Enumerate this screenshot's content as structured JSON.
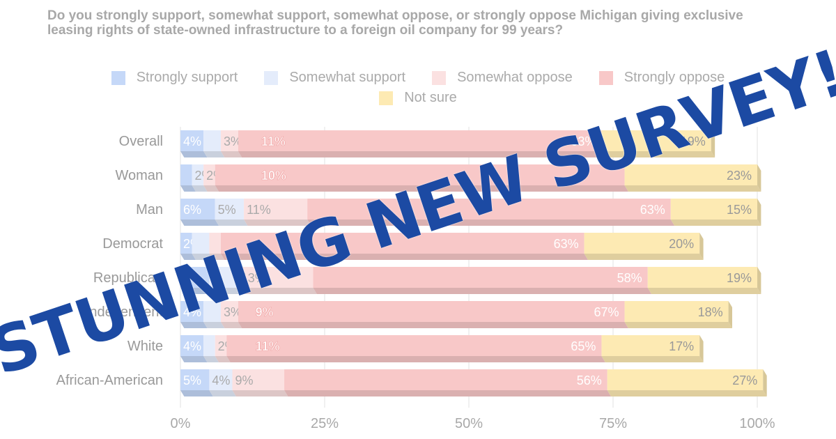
{
  "question": "Do you strongly support, somewhat support, somewhat oppose, or strongly oppose Michigan giving exclusive leasing rights of state-owned infrastructure to a foreign oil company for 99 years?",
  "stamp_text": "STUNNING NEW SURVEY!",
  "colors": {
    "strongly_support": "#c5d8f8",
    "somewhat_support": "#e4ecfb",
    "somewhat_oppose": "#fbe1e1",
    "strongly_oppose": "#f8c8c8",
    "not_sure": "#fdeab3",
    "stamp": "#1c4aa3"
  },
  "chart_data": {
    "type": "bar",
    "orientation": "horizontal",
    "stacked": true,
    "categories": [
      "Overall",
      "Woman",
      "Man",
      "Democrat",
      "Republican",
      "Independent",
      "White",
      "African-American"
    ],
    "series": [
      {
        "name": "Strongly support",
        "values": [
          4,
          2,
          6,
          2,
          5,
          4,
          4,
          5
        ],
        "labels": [
          "4%",
          "",
          "6%",
          "2%",
          "",
          "4%",
          "4%",
          "5%"
        ]
      },
      {
        "name": "Somewhat support",
        "values": [
          3,
          2,
          5,
          3,
          5,
          3,
          2,
          4
        ],
        "labels": [
          "",
          "2%",
          "5%",
          "",
          "",
          "",
          "",
          "4%"
        ]
      },
      {
        "name": "Somewhat oppose",
        "values": [
          3,
          2,
          11,
          2,
          13,
          3,
          2,
          9
        ],
        "labels": [
          "3%",
          "2%",
          "11%",
          "",
          "13%",
          "3%",
          "2%",
          "9%"
        ]
      },
      {
        "name": "Strongly oppose",
        "values": [
          63,
          71,
          63,
          63,
          58,
          67,
          65,
          56
        ],
        "labels": [
          "63%",
          "",
          "63%",
          "63%",
          "58%",
          "67%",
          "65%",
          "56%"
        ]
      },
      {
        "name": "Not sure",
        "values": [
          19,
          23,
          15,
          20,
          19,
          18,
          17,
          27
        ],
        "labels": [
          "19%",
          "23%",
          "15%",
          "20%",
          "19%",
          "18%",
          "17%",
          "27%"
        ]
      }
    ],
    "extra_labels": [
      {
        "category": "Overall",
        "text": "11%",
        "at": 14
      },
      {
        "category": "Woman",
        "text": "10%",
        "at": 14
      },
      {
        "category": "Independent",
        "text": "9%",
        "at": 13
      },
      {
        "category": "White",
        "text": "11%",
        "at": 13
      }
    ],
    "x_ticks": [
      "0%",
      "25%",
      "50%",
      "75%",
      "100%"
    ],
    "xlim": [
      0,
      100
    ],
    "legend_position": "top"
  }
}
